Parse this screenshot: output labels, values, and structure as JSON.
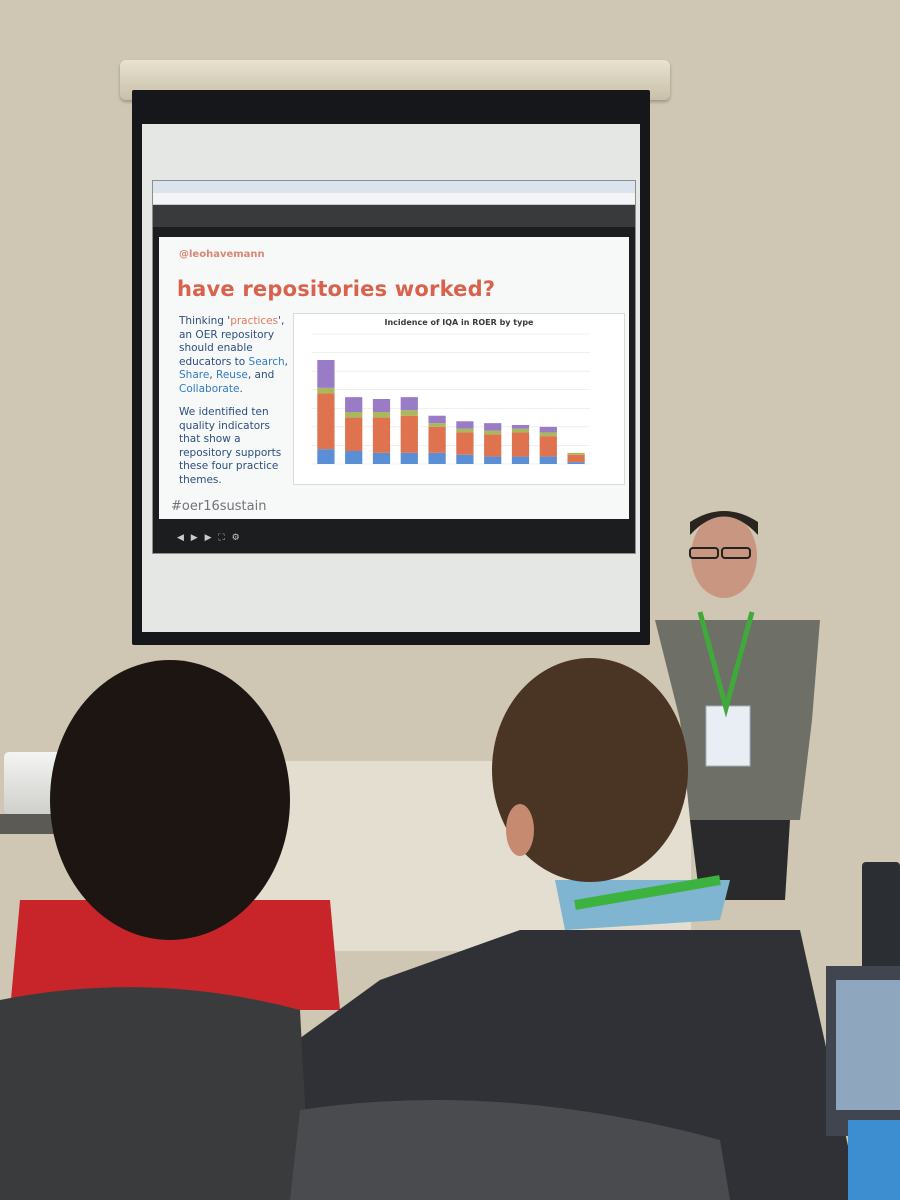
{
  "slide": {
    "handle": "@leohavemann",
    "title": "have repositories worked?",
    "paragraph1": {
      "pre": "Thinking '",
      "practices": "practices",
      "mid": "', an OER repository should enable educators to ",
      "search": "Search",
      "comma1": ", ",
      "share": "Share",
      "comma2": ", ",
      "reuse": "Reuse",
      "and": ", and ",
      "collaborate": "Collaborate",
      "end": "."
    },
    "paragraph2": "We identified ten quality indicators that show a repository supports these four practice themes.",
    "hashtag": "#oer16sustain"
  },
  "chart_data": {
    "type": "bar",
    "title": "Incidence of IQA in ROER by type",
    "colors": {
      "s1": "#5a8fd6",
      "s2": "#e0734f",
      "s3": "#a8b85a",
      "s4": "#9a7cc6",
      "s5": "#c9a0dc"
    },
    "ylim": [
      0,
      70
    ],
    "stacks": [
      [
        8,
        30,
        3,
        15,
        0
      ],
      [
        7,
        18,
        3,
        8,
        0
      ],
      [
        6,
        19,
        3,
        7,
        0
      ],
      [
        6,
        20,
        3,
        7,
        0
      ],
      [
        6,
        14,
        2,
        4,
        0
      ],
      [
        5,
        12,
        2,
        4,
        0
      ],
      [
        4,
        12,
        2,
        4,
        0
      ],
      [
        4,
        13,
        2,
        2,
        0
      ],
      [
        4,
        11,
        2,
        3,
        0
      ],
      [
        1,
        4,
        1,
        0,
        0
      ]
    ]
  },
  "colors": {
    "wall": "#cfc6b3",
    "screen_frame": "#16171a",
    "accent_title": "#d9624c",
    "text_blue": "#2c4f80"
  }
}
